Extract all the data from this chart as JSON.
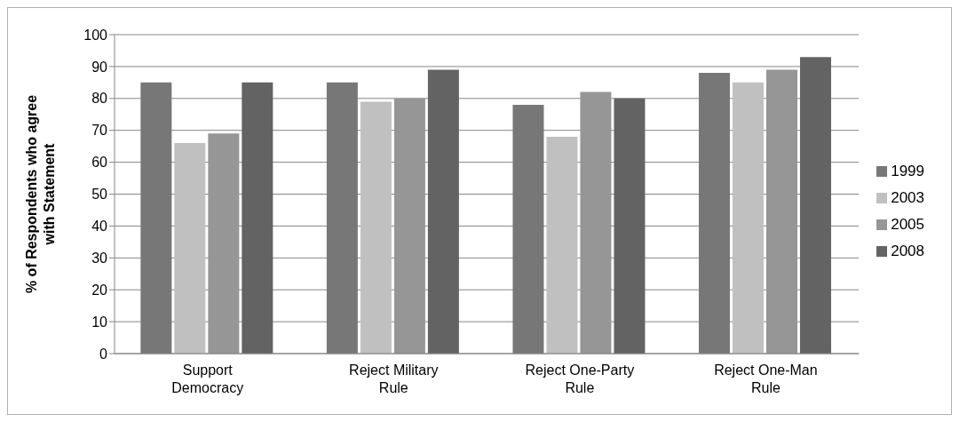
{
  "chart_data": {
    "type": "bar",
    "ylabel": "% of Respondents who agree with Statement",
    "categories": [
      "Support Democracy",
      "Reject Military Rule",
      "Reject One-Party Rule",
      "Reject One-Man Rule"
    ],
    "series": [
      {
        "name": "1999",
        "color": "#777777",
        "values": [
          85,
          85,
          78,
          88
        ]
      },
      {
        "name": "2003",
        "color": "#c0c0c0",
        "values": [
          66,
          79,
          68,
          85
        ]
      },
      {
        "name": "2005",
        "color": "#969696",
        "values": [
          69,
          80,
          82,
          89
        ]
      },
      {
        "name": "2008",
        "color": "#636363",
        "values": [
          85,
          89,
          80,
          93
        ]
      }
    ],
    "ylim": [
      0,
      100
    ],
    "yticks": [
      0,
      10,
      20,
      30,
      40,
      50,
      60,
      70,
      80,
      90,
      100
    ],
    "grid": "y",
    "legend": "right"
  }
}
